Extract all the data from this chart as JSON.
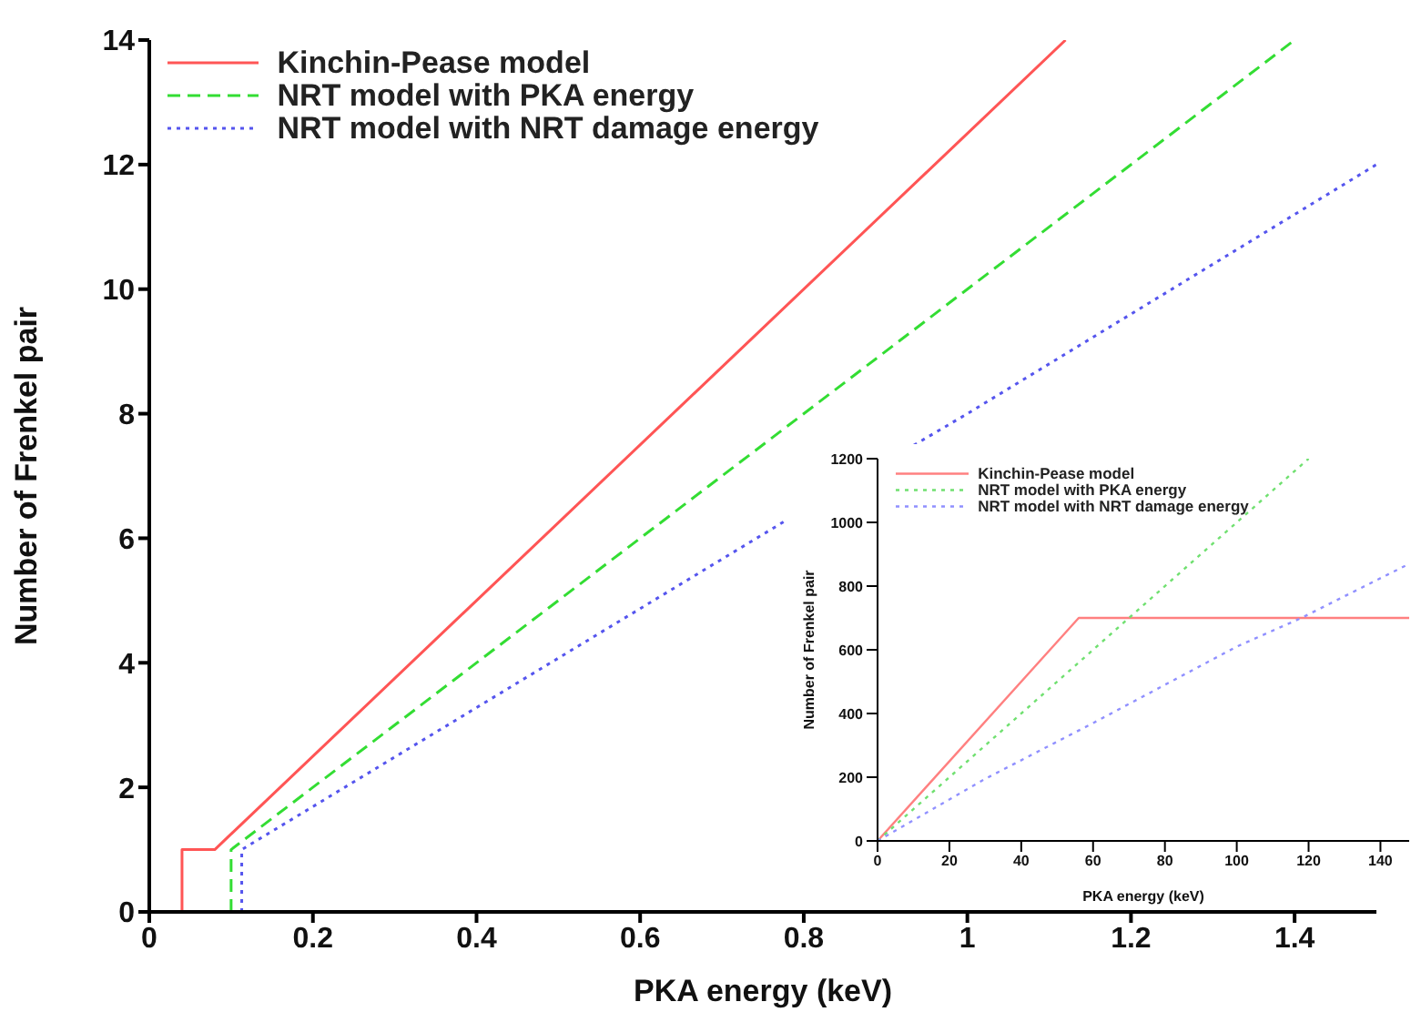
{
  "chart_data": [
    {
      "type": "line",
      "xlabel": "PKA energy (keV)",
      "ylabel": "Number of Frenkel pair",
      "xlim": [
        0,
        1.5
      ],
      "ylim": [
        0,
        14
      ],
      "xticks": [
        0,
        0.2,
        0.4,
        0.6,
        0.8,
        1,
        1.2,
        1.4
      ],
      "yticks": [
        0,
        2,
        4,
        6,
        8,
        10,
        12,
        14
      ],
      "legend": "top left",
      "series": [
        {
          "name": "Kinchin-Pease model",
          "color": "#ff5555",
          "line_style": "solid",
          "x": [
            0.04,
            0.04,
            0.08,
            1.12
          ],
          "values": [
            0,
            1,
            1,
            14
          ]
        },
        {
          "name": "NRT model with PKA energy",
          "color": "#33dd33",
          "line_style": "dashed",
          "x": [
            0.1,
            0.1,
            1.4
          ],
          "values": [
            0,
            1,
            14
          ]
        },
        {
          "name": "NRT model with NRT damage energy",
          "color": "#5555ee",
          "line_style": "dotted",
          "x": [
            0.113,
            0.113,
            0.78,
            1.0,
            1.5
          ],
          "values": [
            0,
            1,
            6.3,
            8.0,
            12
          ]
        }
      ]
    },
    {
      "type": "line",
      "xlabel": "PKA energy (keV)",
      "ylabel": "Number of Frenkel pair",
      "xlim": [
        0,
        148
      ],
      "ylim": [
        0,
        1200
      ],
      "xticks": [
        0,
        20,
        40,
        60,
        80,
        100,
        120,
        140
      ],
      "yticks": [
        0,
        200,
        400,
        600,
        800,
        1000,
        1200
      ],
      "legend": "top left",
      "series": [
        {
          "name": "Kinchin-Pease model",
          "color": "#ff8080",
          "line_style": "solid",
          "x": [
            0,
            56,
            148
          ],
          "values": [
            0,
            700,
            700
          ]
        },
        {
          "name": "NRT model with PKA energy",
          "color": "#70e070",
          "line_style": "dotted",
          "x": [
            0,
            120
          ],
          "values": [
            0,
            1200
          ]
        },
        {
          "name": "NRT model with NRT damage energy",
          "color": "#9090ff",
          "line_style": "dotted",
          "x": [
            0,
            30,
            60,
            100,
            118,
            148
          ],
          "values": [
            0,
            195,
            370,
            610,
            700,
            870
          ]
        }
      ]
    }
  ]
}
